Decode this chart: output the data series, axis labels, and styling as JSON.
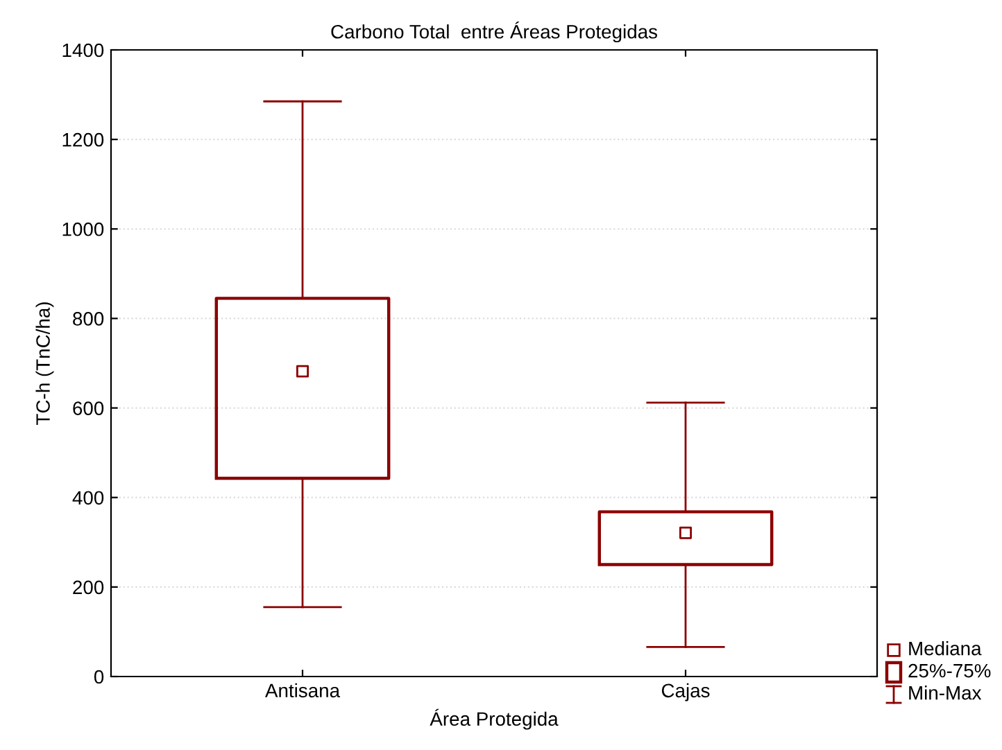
{
  "chart_data": {
    "type": "box",
    "title": "Carbono Total  entre Áreas Protegidas",
    "xlabel": "Área Protegida",
    "ylabel": "TC-h (TnC/ha)",
    "categories": [
      "Antisana",
      "Cajas"
    ],
    "boxes": [
      {
        "low": 155,
        "q1": 443,
        "median": 682,
        "q3": 845,
        "high": 1285
      },
      {
        "low": 66,
        "q1": 250,
        "median": 321,
        "q3": 368,
        "high": 612
      }
    ],
    "color": "#8b0000",
    "ylim": [
      0,
      1400
    ],
    "yticks": [
      0,
      200,
      400,
      600,
      800,
      1000,
      1200,
      1400
    ],
    "grid": "y",
    "marker": "square",
    "annotations": [
      "Mediana",
      "25%-75%",
      "Min-Max"
    ]
  }
}
